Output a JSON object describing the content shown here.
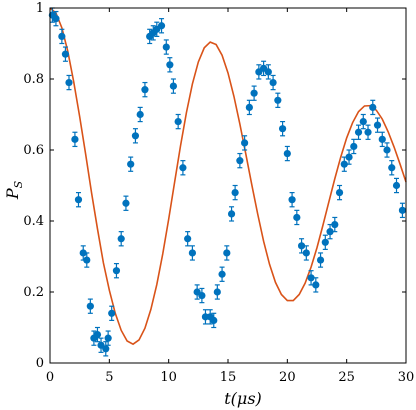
{
  "chart_data": {
    "type": "scatter",
    "xlabel": "t(μs)",
    "ylabel_main": "P",
    "ylabel_sub": "S",
    "xlim": [
      0,
      30
    ],
    "ylim": [
      0,
      1
    ],
    "x_ticks": [
      0,
      5,
      10,
      15,
      20,
      25,
      30
    ],
    "y_ticks": [
      0,
      0.2,
      0.4,
      0.6,
      0.8,
      1
    ],
    "x_tick_labels": [
      "0",
      "5",
      "10",
      "15",
      "20",
      "25",
      "30"
    ],
    "y_tick_labels": [
      "0",
      "0.2",
      "0.4",
      "0.6",
      "0.8",
      "1"
    ],
    "grid": false,
    "box": true,
    "colors": {
      "points": "#0072BD",
      "fit": "#D95319",
      "axes": "#000000"
    },
    "series": [
      {
        "kind": "points_with_errorbars",
        "x": [
          0.2,
          0.5,
          1.0,
          1.3,
          1.6,
          2.1,
          2.4,
          2.8,
          3.1,
          3.4,
          3.7,
          4.0,
          4.3,
          4.7,
          4.9,
          5.2,
          5.6,
          6.0,
          6.4,
          6.8,
          7.2,
          7.6,
          8.0,
          8.4,
          8.7,
          9.0,
          9.4,
          9.8,
          10.1,
          10.4,
          10.8,
          11.2,
          11.6,
          12.0,
          12.4,
          12.8,
          13.1,
          13.5,
          13.8,
          14.1,
          14.5,
          14.9,
          15.3,
          15.6,
          16.0,
          16.4,
          16.8,
          17.2,
          17.6,
          18.0,
          18.4,
          18.8,
          19.2,
          19.6,
          20.0,
          20.4,
          20.8,
          21.2,
          21.6,
          22.0,
          22.4,
          22.8,
          23.2,
          23.6,
          24.0,
          24.4,
          24.8,
          25.2,
          25.6,
          26.0,
          26.4,
          26.8,
          27.2,
          27.6,
          28.0,
          28.4,
          28.8,
          29.2,
          29.7
        ],
        "y": [
          0.98,
          0.97,
          0.92,
          0.87,
          0.79,
          0.63,
          0.46,
          0.31,
          0.29,
          0.16,
          0.07,
          0.08,
          0.05,
          0.04,
          0.07,
          0.14,
          0.26,
          0.35,
          0.45,
          0.56,
          0.64,
          0.7,
          0.77,
          0.92,
          0.93,
          0.94,
          0.95,
          0.89,
          0.84,
          0.78,
          0.68,
          0.55,
          0.35,
          0.31,
          0.2,
          0.19,
          0.13,
          0.13,
          0.12,
          0.2,
          0.25,
          0.31,
          0.42,
          0.48,
          0.57,
          0.62,
          0.72,
          0.76,
          0.82,
          0.83,
          0.82,
          0.79,
          0.74,
          0.66,
          0.59,
          0.46,
          0.41,
          0.33,
          0.31,
          0.24,
          0.22,
          0.29,
          0.34,
          0.37,
          0.39,
          0.48,
          0.56,
          0.58,
          0.61,
          0.65,
          0.68,
          0.65,
          0.72,
          0.67,
          0.63,
          0.6,
          0.55,
          0.5,
          0.43
        ],
        "yerr": [
          0.02,
          0.02,
          0.02,
          0.02,
          0.02,
          0.02,
          0.02,
          0.02,
          0.02,
          0.02,
          0.02,
          0.02,
          0.02,
          0.02,
          0.02,
          0.02,
          0.02,
          0.02,
          0.02,
          0.02,
          0.02,
          0.02,
          0.02,
          0.02,
          0.02,
          0.02,
          0.02,
          0.02,
          0.02,
          0.02,
          0.02,
          0.02,
          0.02,
          0.02,
          0.02,
          0.02,
          0.02,
          0.02,
          0.02,
          0.02,
          0.02,
          0.02,
          0.02,
          0.02,
          0.02,
          0.02,
          0.02,
          0.02,
          0.02,
          0.02,
          0.02,
          0.02,
          0.02,
          0.02,
          0.02,
          0.02,
          0.02,
          0.02,
          0.02,
          0.02,
          0.02,
          0.02,
          0.02,
          0.02,
          0.02,
          0.02,
          0.02,
          0.02,
          0.02,
          0.02,
          0.02,
          0.02,
          0.02,
          0.02,
          0.02,
          0.02,
          0.02,
          0.02,
          0.02
        ]
      },
      {
        "kind": "fit_line",
        "x": [
          0,
          0.5,
          1,
          1.5,
          2,
          2.5,
          3,
          3.5,
          4,
          4.5,
          5,
          5.5,
          6,
          6.5,
          7,
          7.5,
          8,
          8.5,
          9,
          9.5,
          10,
          10.5,
          11,
          11.5,
          12,
          12.5,
          13,
          13.5,
          14,
          14.5,
          15,
          15.5,
          16,
          16.5,
          17,
          17.5,
          18,
          18.5,
          19,
          19.5,
          20,
          20.5,
          21,
          21.5,
          22,
          22.5,
          23,
          23.5,
          24,
          24.5,
          25,
          25.5,
          26,
          26.5,
          27,
          27.5,
          28,
          28.5,
          29,
          29.5,
          30
        ],
        "y": [
          1.0,
          0.986,
          0.944,
          0.878,
          0.792,
          0.694,
          0.589,
          0.48,
          0.378,
          0.282,
          0.205,
          0.14,
          0.092,
          0.062,
          0.053,
          0.065,
          0.098,
          0.151,
          0.221,
          0.307,
          0.405,
          0.509,
          0.612,
          0.706,
          0.786,
          0.848,
          0.888,
          0.904,
          0.897,
          0.867,
          0.817,
          0.751,
          0.673,
          0.589,
          0.503,
          0.42,
          0.343,
          0.278,
          0.227,
          0.193,
          0.176,
          0.176,
          0.193,
          0.225,
          0.27,
          0.325,
          0.388,
          0.454,
          0.519,
          0.58,
          0.634,
          0.677,
          0.708,
          0.724,
          0.725,
          0.712,
          0.687,
          0.651,
          0.608,
          0.56,
          0.51
        ]
      }
    ]
  }
}
